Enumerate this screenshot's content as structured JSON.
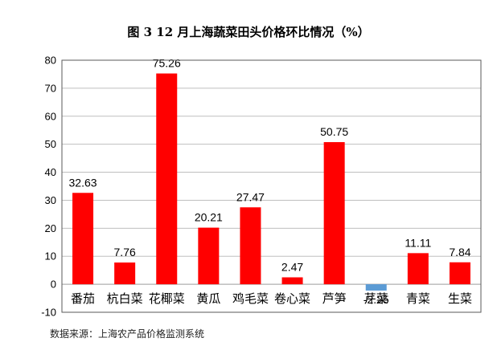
{
  "chart_data": {
    "type": "bar",
    "title": "图 3 12 月上海蔬菜田头价格环比情况（%）",
    "categories": [
      "番茄",
      "杭白菜",
      "花椰菜",
      "黄瓜",
      "鸡毛菜",
      "卷心菜",
      "芦笋",
      "芹菜",
      "青菜",
      "生菜"
    ],
    "values": [
      32.63,
      7.76,
      75.26,
      20.21,
      27.47,
      2.47,
      50.75,
      -2.25,
      11.11,
      7.84
    ],
    "data_labels": [
      "32.63",
      "7.76",
      "75.26",
      "20.21",
      "27.47",
      "2.47",
      "50.75",
      "-2.25",
      "11.11",
      "7.84"
    ],
    "xlabel": "",
    "ylabel": "",
    "ylim": [
      -10,
      80
    ],
    "yticks": [
      -10,
      0,
      10,
      20,
      30,
      40,
      50,
      60,
      70,
      80
    ],
    "grid": true,
    "legend": "none",
    "colors": {
      "positive": "#ff0000",
      "negative": "#5b9bd5",
      "grid": "#bfbfbf",
      "frame": "#5a5a5a",
      "text": "#000000"
    }
  },
  "source": "数据来源：上海农产品价格监测系统"
}
